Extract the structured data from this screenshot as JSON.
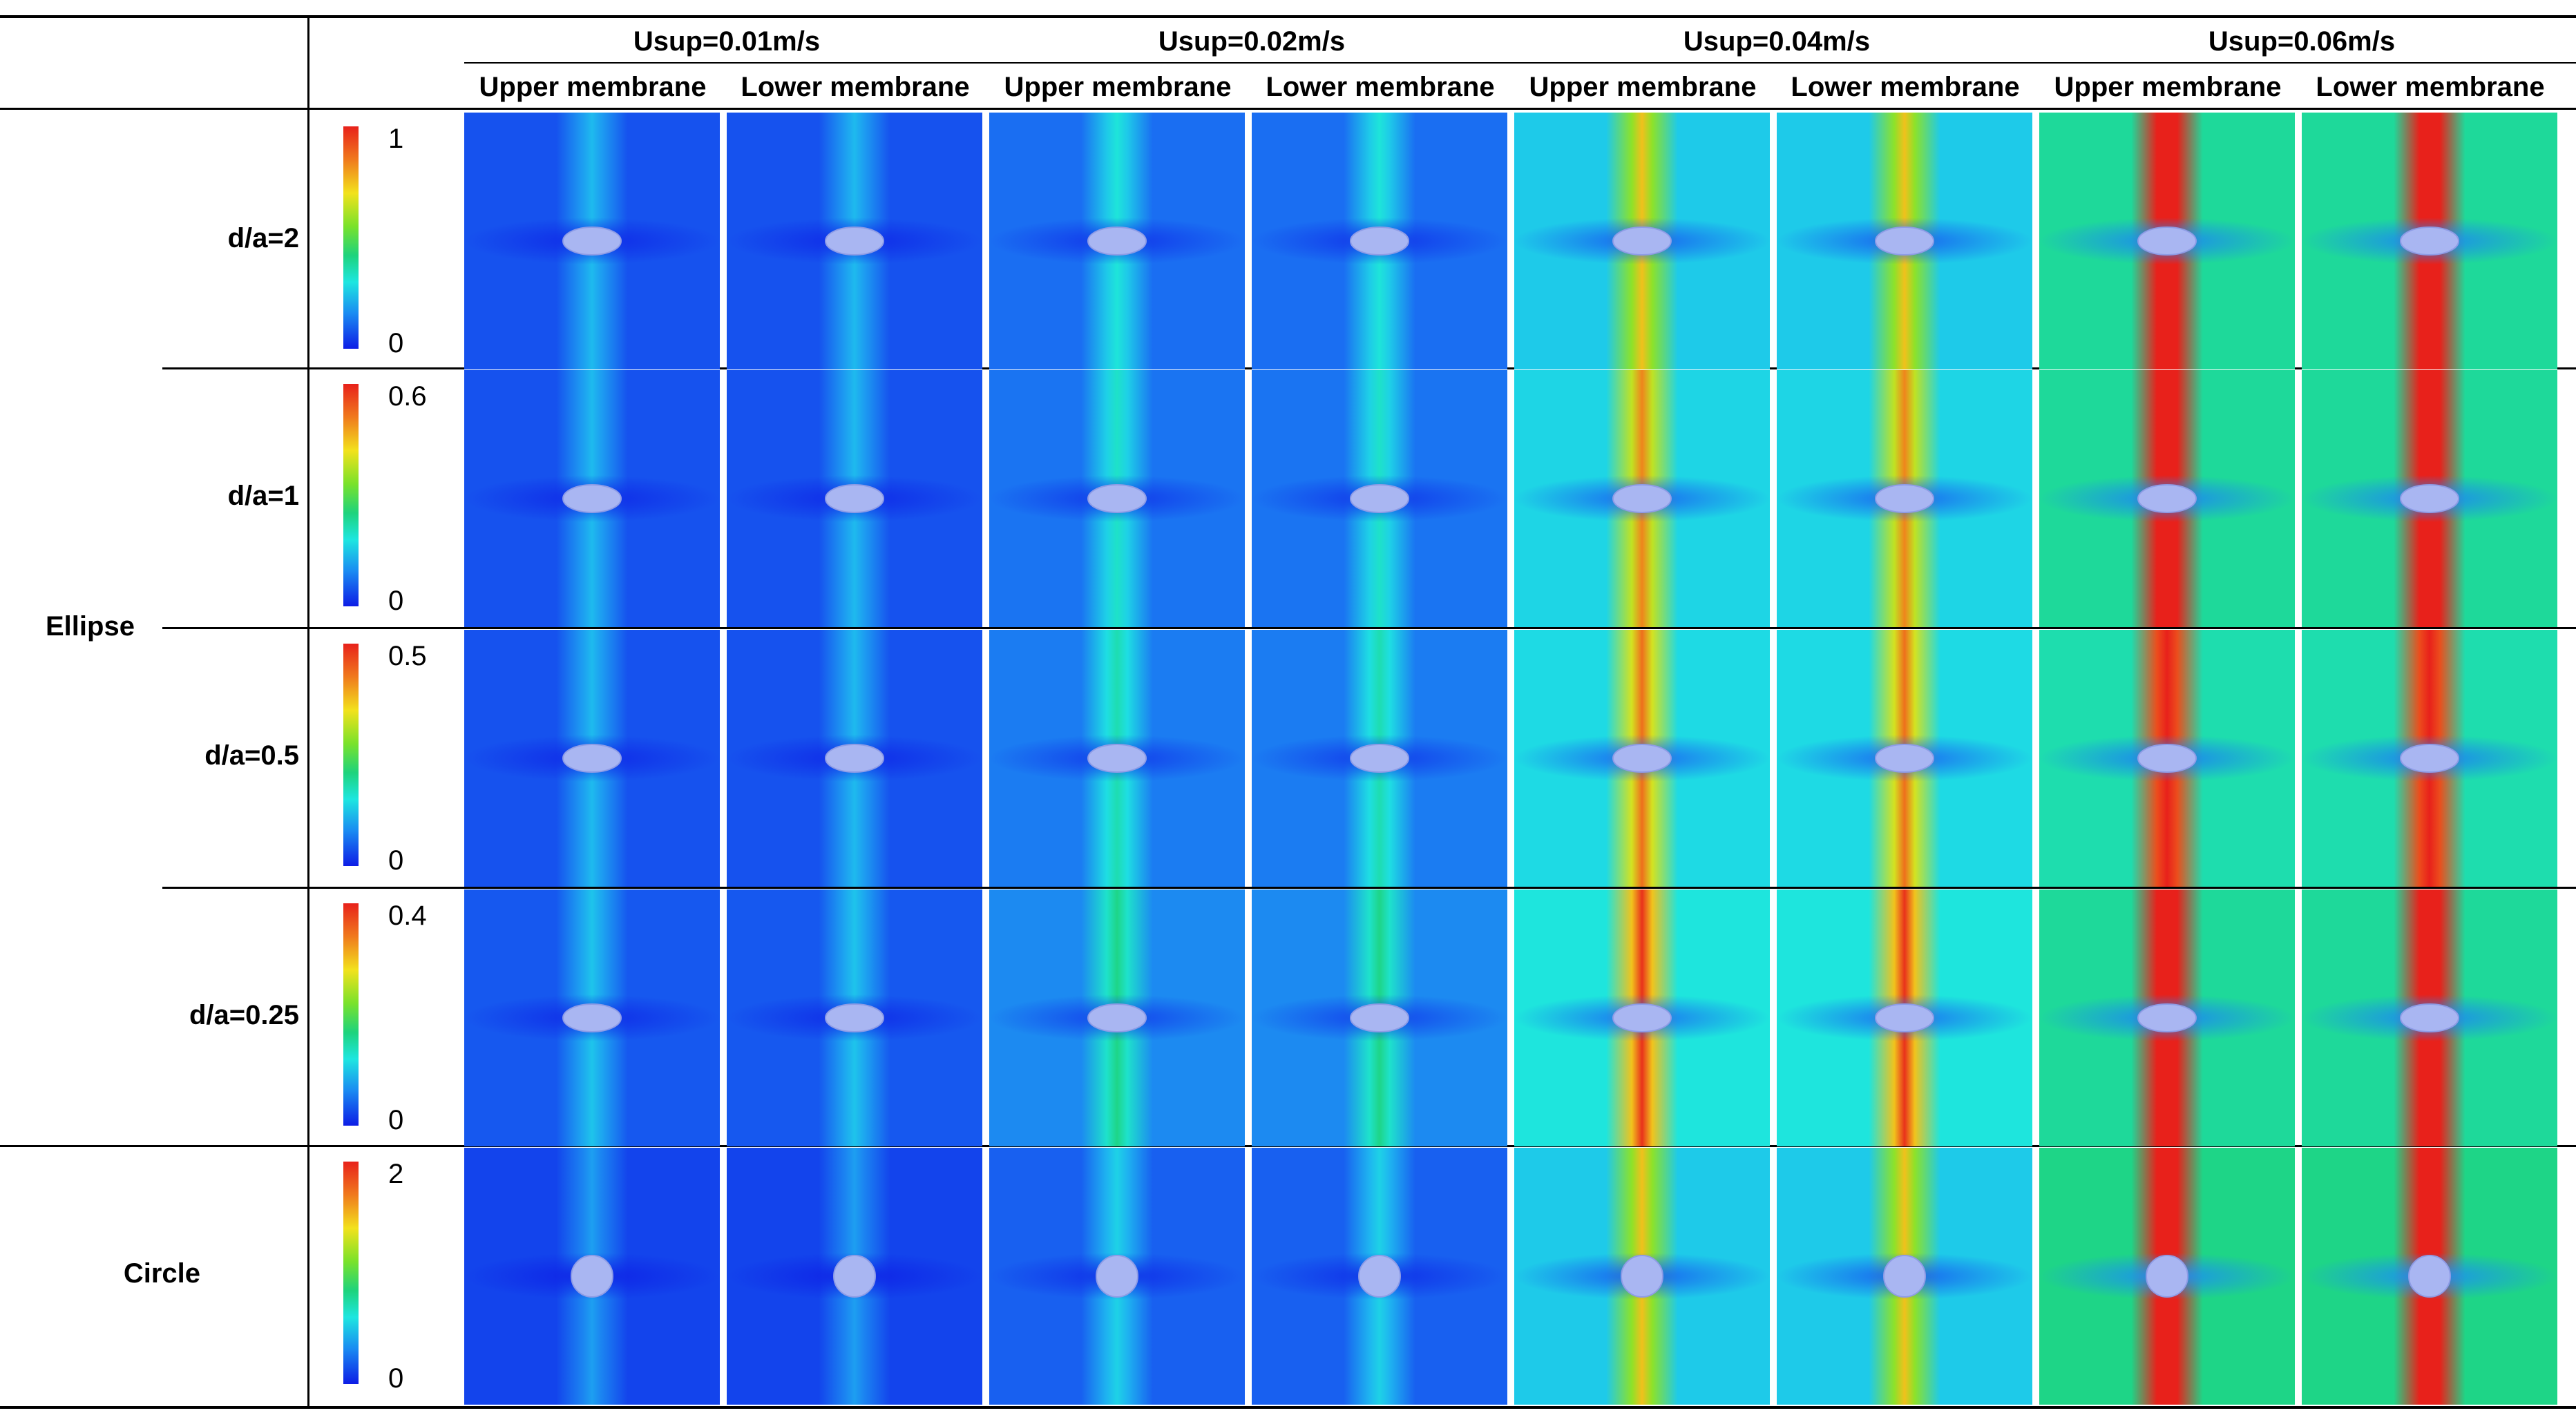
{
  "column_groups": [
    {
      "label": "Usup=0.01m/s",
      "columns": [
        "Upper membrane",
        "Lower membrane"
      ]
    },
    {
      "label": "Usup=0.02m/s",
      "columns": [
        "Upper membrane",
        "Lower membrane"
      ]
    },
    {
      "label": "Usup=0.04m/s",
      "columns": [
        "Upper membrane",
        "Lower membrane"
      ]
    },
    {
      "label": "Usup=0.06m/s",
      "columns": [
        "Upper membrane",
        "Lower membrane"
      ]
    }
  ],
  "group_label": "Ellipse",
  "rows": [
    {
      "label": "d/a=2",
      "colorbar": {
        "max": "1",
        "min": "0"
      },
      "shape": "ellipse"
    },
    {
      "label": "d/a=1",
      "colorbar": {
        "max": "0.6",
        "min": "0"
      },
      "shape": "ellipse"
    },
    {
      "label": "d/a=0.5",
      "colorbar": {
        "max": "0.5",
        "min": "0"
      },
      "shape": "ellipse"
    },
    {
      "label": "d/a=0.25",
      "colorbar": {
        "max": "0.4",
        "min": "0"
      },
      "shape": "ellipse"
    },
    {
      "label": "Circle",
      "colorbar": {
        "max": "2",
        "min": "0"
      },
      "shape": "circle"
    }
  ],
  "colors": {
    "low": "#0d1de6",
    "mid_low": "#1a8cf2",
    "mid": "#1ee6e0",
    "mid_high": "#79e22b",
    "high": "#f2e21c",
    "max": "#e8211b"
  }
}
